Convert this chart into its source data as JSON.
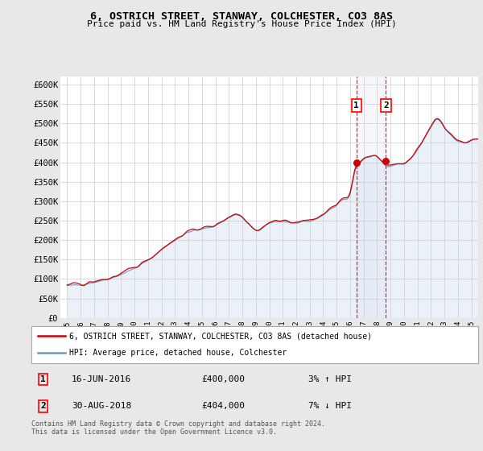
{
  "title_line1": "6, OSTRICH STREET, STANWAY, COLCHESTER, CO3 8AS",
  "title_line2": "Price paid vs. HM Land Registry's House Price Index (HPI)",
  "ylim": [
    0,
    620000
  ],
  "yticks": [
    0,
    50000,
    100000,
    150000,
    200000,
    250000,
    300000,
    350000,
    400000,
    450000,
    500000,
    550000,
    600000
  ],
  "ytick_labels": [
    "£0",
    "£50K",
    "£100K",
    "£150K",
    "£200K",
    "£250K",
    "£300K",
    "£350K",
    "£400K",
    "£450K",
    "£500K",
    "£550K",
    "£600K"
  ],
  "xtick_years": [
    1995,
    1996,
    1997,
    1998,
    1999,
    2000,
    2001,
    2002,
    2003,
    2004,
    2005,
    2006,
    2007,
    2008,
    2009,
    2010,
    2011,
    2012,
    2013,
    2014,
    2015,
    2016,
    2017,
    2018,
    2019,
    2020,
    2021,
    2022,
    2023,
    2024,
    2025
  ],
  "sale1_x": 2016.46,
  "sale1_y": 400000,
  "sale2_x": 2018.66,
  "sale2_y": 404000,
  "sale1_date": "16-JUN-2016",
  "sale1_price": "£400,000",
  "sale1_hpi": "3% ↑ HPI",
  "sale2_date": "30-AUG-2018",
  "sale2_price": "£404,000",
  "sale2_hpi": "7% ↓ HPI",
  "hpi_color": "#6699cc",
  "hpi_fill_color": "#c8d8ee",
  "price_color": "#cc0000",
  "grid_color": "#cccccc",
  "bg_color": "#e8e8e8",
  "plot_bg_color": "#ffffff",
  "legend1_label": "6, OSTRICH STREET, STANWAY, COLCHESTER, CO3 8AS (detached house)",
  "legend2_label": "HPI: Average price, detached house, Colchester",
  "footnote": "Contains HM Land Registry data © Crown copyright and database right 2024.\nThis data is licensed under the Open Government Licence v3.0.",
  "xlim_start": 1994.5,
  "xlim_end": 2025.5
}
